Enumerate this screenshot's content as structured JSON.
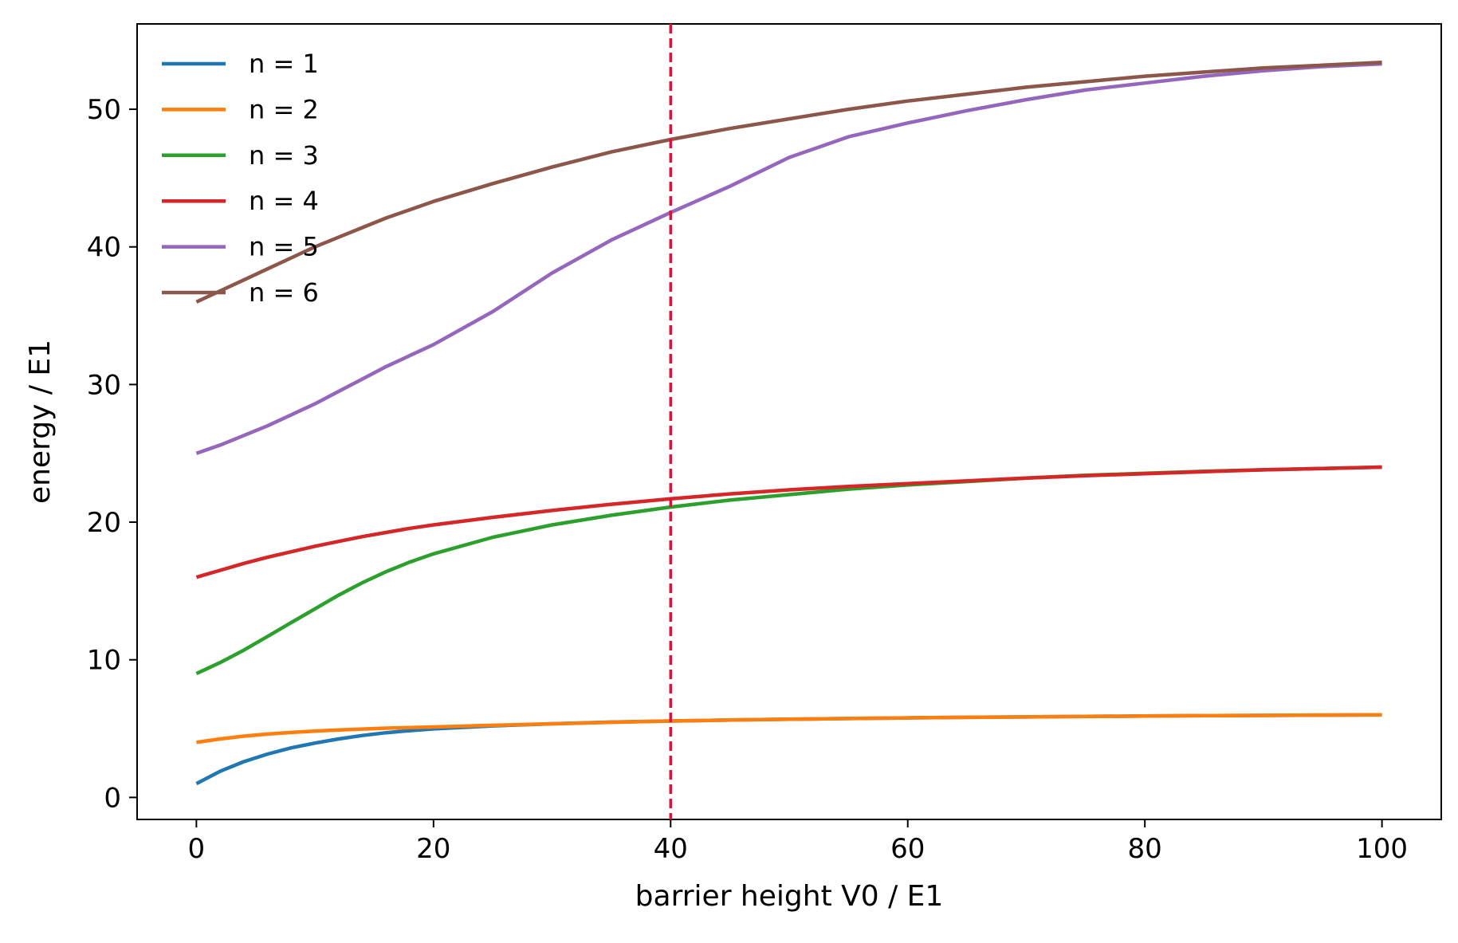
{
  "chart_data": {
    "type": "line",
    "title": "",
    "xlabel": "barrier height V0 / E1",
    "ylabel": "energy / E1",
    "xlim": [
      -5,
      105
    ],
    "ylim": [
      -1.6,
      56.2
    ],
    "xticks": [
      0,
      20,
      40,
      60,
      80,
      100
    ],
    "yticks": [
      0,
      10,
      20,
      30,
      40,
      50
    ],
    "grid": false,
    "legend": {
      "placement": "top-left",
      "frame": false
    },
    "x": [
      0,
      2,
      4,
      6,
      8,
      10,
      12,
      14,
      16,
      18,
      20,
      25,
      30,
      35,
      40,
      45,
      50,
      55,
      60,
      65,
      70,
      75,
      80,
      85,
      90,
      95,
      100
    ],
    "series": [
      {
        "name": "n = 1",
        "color": "#1f77b4",
        "values": [
          1.0,
          1.9,
          2.6,
          3.15,
          3.6,
          3.95,
          4.25,
          4.5,
          4.7,
          4.85,
          4.98,
          5.2,
          5.35,
          5.47,
          5.55,
          5.62,
          5.68,
          5.73,
          5.78,
          5.82,
          5.85,
          5.88,
          5.91,
          5.94,
          5.96,
          5.98,
          6.0
        ]
      },
      {
        "name": "n = 2",
        "color": "#ff7f0e",
        "values": [
          4.0,
          4.25,
          4.45,
          4.6,
          4.72,
          4.82,
          4.9,
          4.97,
          5.03,
          5.08,
          5.12,
          5.24,
          5.35,
          5.46,
          5.55,
          5.62,
          5.68,
          5.73,
          5.78,
          5.82,
          5.85,
          5.88,
          5.91,
          5.94,
          5.96,
          5.98,
          6.0
        ]
      },
      {
        "name": "n = 3",
        "color": "#2ca02c",
        "values": [
          9.0,
          9.8,
          10.7,
          11.7,
          12.7,
          13.7,
          14.7,
          15.6,
          16.4,
          17.1,
          17.7,
          18.9,
          19.8,
          20.5,
          21.1,
          21.6,
          22.0,
          22.4,
          22.7,
          22.95,
          23.2,
          23.4,
          23.55,
          23.7,
          23.8,
          23.9,
          24.0
        ]
      },
      {
        "name": "n = 4",
        "color": "#d62728",
        "values": [
          16.0,
          16.5,
          17.0,
          17.45,
          17.85,
          18.25,
          18.6,
          18.95,
          19.25,
          19.55,
          19.8,
          20.35,
          20.85,
          21.3,
          21.7,
          22.05,
          22.35,
          22.6,
          22.8,
          23.0,
          23.2,
          23.38,
          23.52,
          23.67,
          23.8,
          23.9,
          24.0
        ]
      },
      {
        "name": "n = 5",
        "color": "#9467bd",
        "values": [
          25.0,
          25.6,
          26.3,
          27.0,
          27.8,
          28.6,
          29.5,
          30.4,
          31.3,
          32.1,
          32.9,
          35.3,
          38.1,
          40.5,
          42.5,
          44.4,
          46.5,
          48.0,
          49.0,
          49.9,
          50.7,
          51.4,
          51.9,
          52.4,
          52.8,
          53.1,
          53.3
        ]
      },
      {
        "name": "n = 6",
        "color": "#8c564b",
        "values": [
          36.0,
          36.8,
          37.6,
          38.4,
          39.2,
          40.0,
          40.7,
          41.4,
          42.1,
          42.7,
          43.3,
          44.6,
          45.8,
          46.9,
          47.8,
          48.6,
          49.3,
          50.0,
          50.6,
          51.1,
          51.6,
          52.0,
          52.4,
          52.7,
          53.0,
          53.2,
          53.4
        ]
      }
    ],
    "annotations": [
      {
        "type": "vline",
        "x": 40,
        "color": "#dc143c",
        "style": "dashed"
      }
    ]
  }
}
